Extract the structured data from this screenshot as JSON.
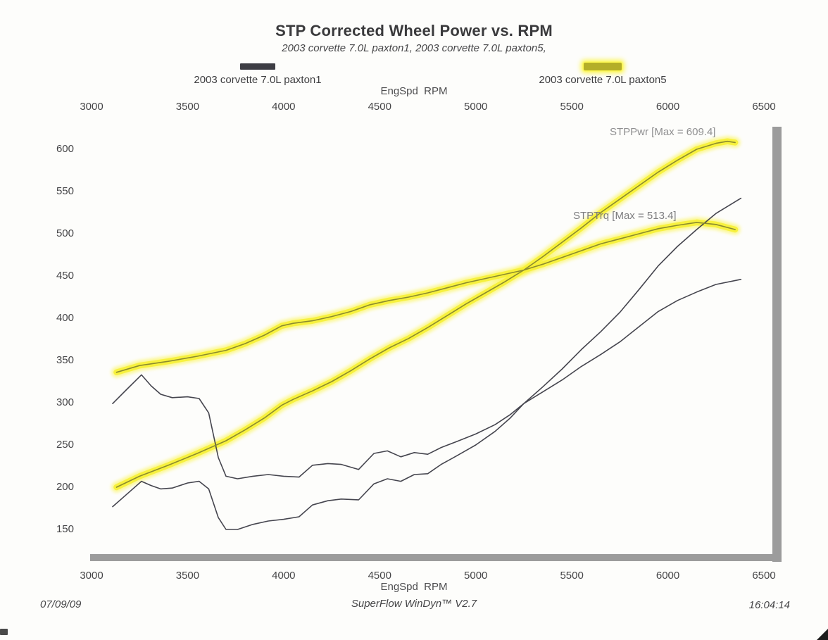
{
  "title": "STP Corrected Wheel Power vs. RPM",
  "subtitle": "2003 corvette 7.0L paxton1, 2003 corvette 7.0L paxton5,",
  "legend": {
    "items": [
      {
        "label": "2003 corvette 7.0L paxton1",
        "swatch": "dark-line",
        "color": "#3d3d44"
      },
      {
        "label": "2003 corvette 7.0L paxton5",
        "swatch": "yellow-highlight",
        "color": "#b4ae28",
        "glow_color": "#fcf642"
      }
    ]
  },
  "annotations": [
    {
      "text": "STPPwr [Max = 609.4]"
    },
    {
      "text": "STPTrq [Max = 513.4]"
    }
  ],
  "footer": {
    "date": "07/09/09",
    "software": "SuperFlow WinDyn™ V2.7",
    "time": "16:04:14"
  },
  "chart_data": {
    "type": "line",
    "title": "STP Corrected Wheel Power vs. RPM",
    "subtitle": "2003 corvette 7.0L paxton1, 2003 corvette 7.0L paxton5,",
    "xlabel_top": "EngSpd  RPM",
    "xlabel_bottom": "EngSpd  RPM",
    "x_ticks": [
      3000,
      3500,
      4000,
      4500,
      5000,
      5500,
      6000,
      6500
    ],
    "y_ticks": [
      150,
      200,
      250,
      300,
      350,
      400,
      450,
      500,
      550,
      600
    ],
    "xlim": [
      3000,
      6500
    ],
    "ylim": [
      120,
      627
    ],
    "grid": false,
    "legend_position": "top",
    "series": [
      {
        "name": "paxton1 STPPwr",
        "run": "2003 corvette 7.0L paxton1",
        "channel": "STPPwr",
        "style": "thin-dark",
        "color": "#45454e",
        "points": [
          [
            3110,
            177
          ],
          [
            3180,
            191
          ],
          [
            3260,
            207
          ],
          [
            3310,
            202
          ],
          [
            3360,
            198
          ],
          [
            3420,
            199
          ],
          [
            3500,
            205
          ],
          [
            3560,
            207
          ],
          [
            3610,
            198
          ],
          [
            3660,
            164
          ],
          [
            3700,
            150
          ],
          [
            3760,
            150
          ],
          [
            3840,
            156
          ],
          [
            3920,
            160
          ],
          [
            4000,
            162
          ],
          [
            4080,
            165
          ],
          [
            4150,
            179
          ],
          [
            4230,
            184
          ],
          [
            4300,
            186
          ],
          [
            4390,
            185
          ],
          [
            4470,
            204
          ],
          [
            4540,
            210
          ],
          [
            4610,
            207
          ],
          [
            4680,
            215
          ],
          [
            4750,
            216
          ],
          [
            4820,
            227
          ],
          [
            4900,
            237
          ],
          [
            5000,
            250
          ],
          [
            5100,
            266
          ],
          [
            5180,
            282
          ],
          [
            5250,
            299
          ],
          [
            5350,
            319
          ],
          [
            5450,
            340
          ],
          [
            5550,
            363
          ],
          [
            5650,
            384
          ],
          [
            5750,
            407
          ],
          [
            5850,
            434
          ],
          [
            5950,
            462
          ],
          [
            6050,
            485
          ],
          [
            6150,
            505
          ],
          [
            6250,
            524
          ],
          [
            6380,
            542
          ]
        ]
      },
      {
        "name": "paxton1 STPTrq",
        "run": "2003 corvette 7.0L paxton1",
        "channel": "STPTrq",
        "style": "thin-dark",
        "color": "#45454e",
        "points": [
          [
            3110,
            299
          ],
          [
            3180,
            315
          ],
          [
            3260,
            333
          ],
          [
            3310,
            320
          ],
          [
            3360,
            310
          ],
          [
            3420,
            306
          ],
          [
            3500,
            307
          ],
          [
            3560,
            305
          ],
          [
            3610,
            288
          ],
          [
            3660,
            235
          ],
          [
            3700,
            213
          ],
          [
            3760,
            210
          ],
          [
            3840,
            213
          ],
          [
            3920,
            215
          ],
          [
            4000,
            213
          ],
          [
            4080,
            212
          ],
          [
            4150,
            226
          ],
          [
            4230,
            228
          ],
          [
            4300,
            227
          ],
          [
            4390,
            221
          ],
          [
            4470,
            240
          ],
          [
            4540,
            243
          ],
          [
            4610,
            236
          ],
          [
            4680,
            241
          ],
          [
            4750,
            239
          ],
          [
            4820,
            247
          ],
          [
            4900,
            254
          ],
          [
            5000,
            263
          ],
          [
            5100,
            274
          ],
          [
            5180,
            286
          ],
          [
            5250,
            299
          ],
          [
            5350,
            313
          ],
          [
            5450,
            327
          ],
          [
            5550,
            343
          ],
          [
            5650,
            357
          ],
          [
            5750,
            372
          ],
          [
            5850,
            390
          ],
          [
            5950,
            408
          ],
          [
            6050,
            421
          ],
          [
            6150,
            431
          ],
          [
            6250,
            440
          ],
          [
            6380,
            446
          ]
        ]
      },
      {
        "name": "paxton5 STPPwr",
        "run": "2003 corvette 7.0L paxton5",
        "channel": "STPPwr",
        "max": 609.4,
        "style": "yellow-highlight",
        "color": "#8c8c2e",
        "glow_color": "#faf33a",
        "points": [
          [
            3130,
            200
          ],
          [
            3250,
            213
          ],
          [
            3400,
            226
          ],
          [
            3550,
            240
          ],
          [
            3700,
            255
          ],
          [
            3800,
            268
          ],
          [
            3900,
            282
          ],
          [
            3990,
            297
          ],
          [
            4050,
            304
          ],
          [
            4150,
            314
          ],
          [
            4250,
            325
          ],
          [
            4350,
            338
          ],
          [
            4450,
            352
          ],
          [
            4550,
            365
          ],
          [
            4650,
            376
          ],
          [
            4750,
            389
          ],
          [
            4850,
            403
          ],
          [
            4950,
            417
          ],
          [
            5050,
            430
          ],
          [
            5150,
            443
          ],
          [
            5250,
            457
          ],
          [
            5350,
            473
          ],
          [
            5450,
            490
          ],
          [
            5550,
            507
          ],
          [
            5650,
            525
          ],
          [
            5750,
            541
          ],
          [
            5850,
            557
          ],
          [
            5950,
            573
          ],
          [
            6050,
            587
          ],
          [
            6150,
            600
          ],
          [
            6250,
            607
          ],
          [
            6310,
            609.4
          ],
          [
            6350,
            608
          ]
        ]
      },
      {
        "name": "paxton5 STPTrq",
        "run": "2003 corvette 7.0L paxton5",
        "channel": "STPTrq",
        "max": 513.4,
        "style": "yellow-highlight",
        "color": "#8c8c2e",
        "glow_color": "#faf33a",
        "points": [
          [
            3130,
            336
          ],
          [
            3250,
            344
          ],
          [
            3400,
            349
          ],
          [
            3550,
            355
          ],
          [
            3700,
            362
          ],
          [
            3800,
            370
          ],
          [
            3900,
            380
          ],
          [
            3990,
            391
          ],
          [
            4050,
            394
          ],
          [
            4150,
            397
          ],
          [
            4250,
            402
          ],
          [
            4350,
            408
          ],
          [
            4450,
            416
          ],
          [
            4550,
            421
          ],
          [
            4650,
            425
          ],
          [
            4750,
            430
          ],
          [
            4850,
            436
          ],
          [
            4950,
            442
          ],
          [
            5050,
            447
          ],
          [
            5150,
            452
          ],
          [
            5250,
            457
          ],
          [
            5350,
            464
          ],
          [
            5450,
            472
          ],
          [
            5550,
            480
          ],
          [
            5650,
            488
          ],
          [
            5750,
            494
          ],
          [
            5850,
            500
          ],
          [
            5950,
            506
          ],
          [
            6050,
            510
          ],
          [
            6150,
            513.4
          ],
          [
            6250,
            511
          ],
          [
            6350,
            505
          ]
        ]
      }
    ]
  }
}
